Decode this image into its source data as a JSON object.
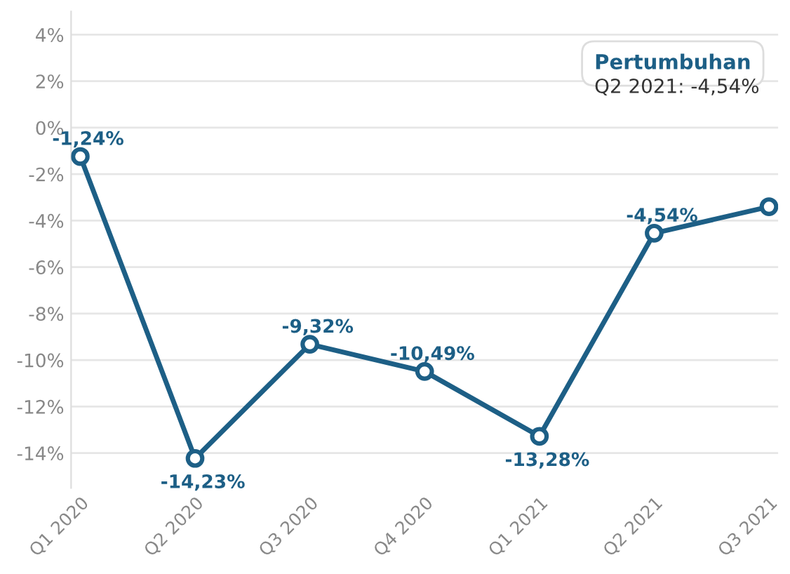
{
  "chart_data": {
    "type": "line",
    "categories": [
      "Q1 2020",
      "Q2 2020",
      "Q3 2020",
      "Q4 2020",
      "Q1 2021",
      "Q2 2021",
      "Q3 2021"
    ],
    "series": [
      {
        "color": "#1d5f86",
        "values": [
          -1.24,
          -14.23,
          -9.32,
          -10.49,
          -13.28,
          -4.54,
          -3.4
        ],
        "value_labels": [
          "-1,24%",
          "-14,23%",
          "-9,32%",
          "-10,49%",
          "-13,28%",
          "-4,54%",
          null
        ]
      }
    ],
    "ylim": [
      -15.5,
      5
    ],
    "yticks": [
      {
        "value": -14,
        "label": "-14%"
      },
      {
        "value": -12,
        "label": "-12%"
      },
      {
        "value": -10,
        "label": "-10%"
      },
      {
        "value": -8,
        "label": "-8%"
      },
      {
        "value": -6,
        "label": "-6%"
      },
      {
        "value": -4,
        "label": "-4%"
      },
      {
        "value": -2,
        "label": "-2%"
      },
      {
        "value": 0,
        "label": "0%"
      },
      {
        "value": 2,
        "label": "2%"
      },
      {
        "value": 4,
        "label": "4%"
      }
    ],
    "grid": "y",
    "marker": "circle",
    "line_style": "solid",
    "legend": false,
    "annotations": [
      "Pertumbuhan",
      "Q2 2021: -4,54%"
    ]
  }
}
